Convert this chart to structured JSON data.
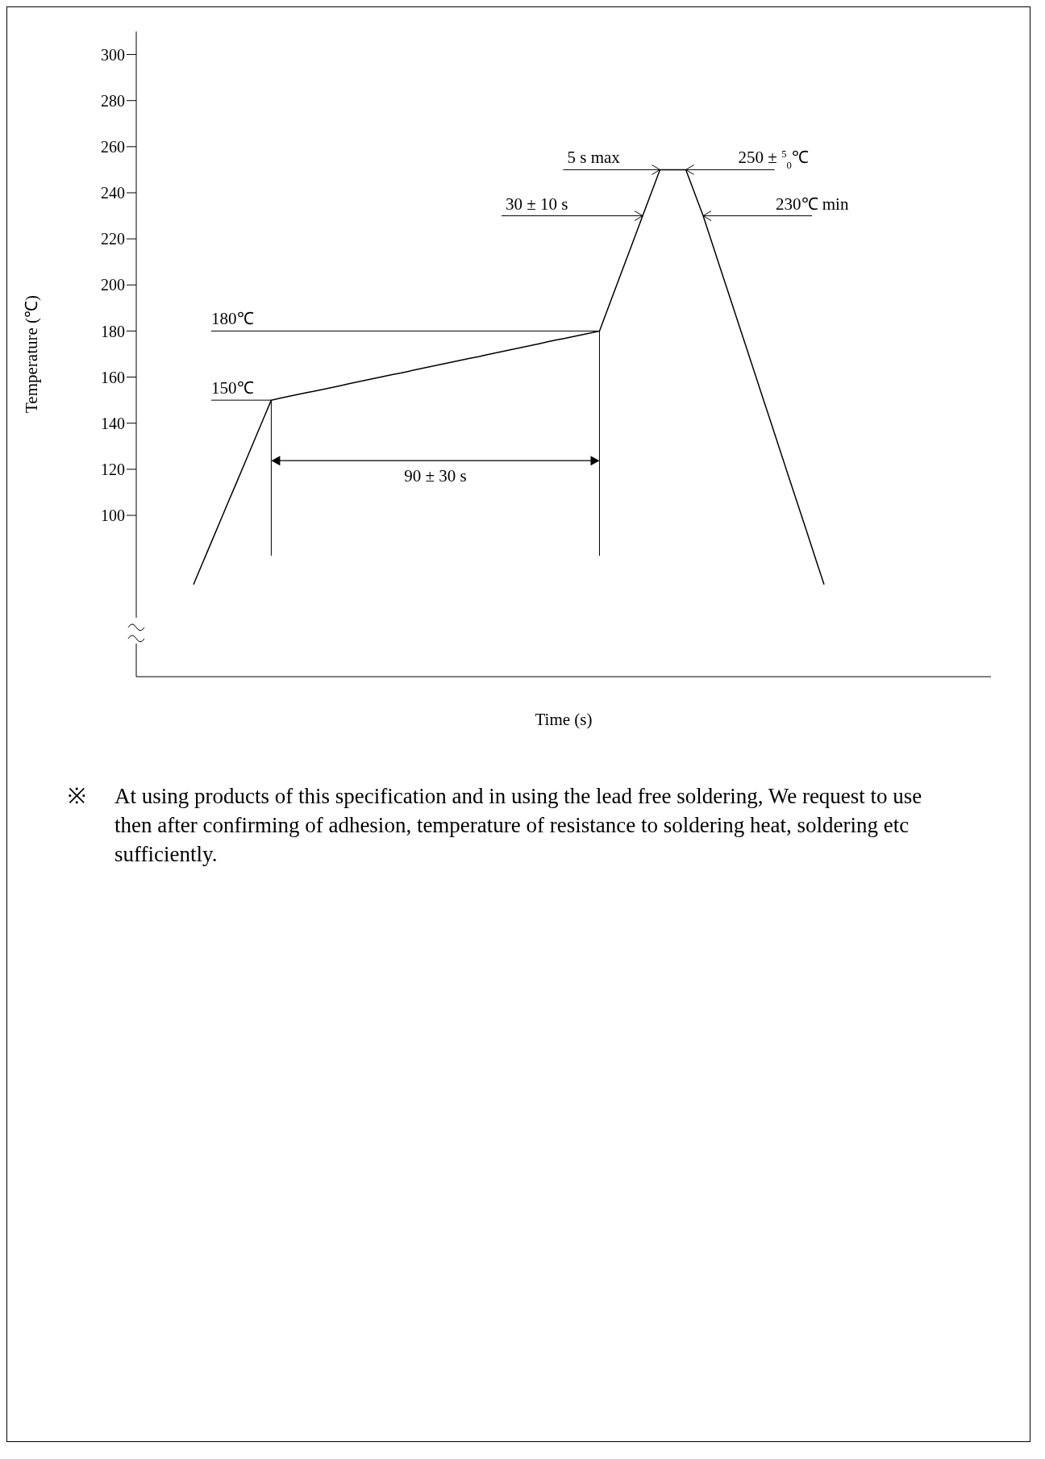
{
  "chart_data": {
    "type": "line",
    "xlabel": "Time (s)",
    "ylabel": "Temperature (℃)",
    "categories": [
      null,
      null,
      null,
      null,
      null,
      null,
      null,
      null,
      null,
      null,
      null,
      null,
      null,
      null,
      null,
      null,
      null,
      null,
      null,
      null,
      null,
      null,
      null,
      null,
      null,
      null,
      null,
      null,
      null,
      null,
      null,
      null,
      null,
      null,
      null,
      null,
      null,
      null,
      null,
      null,
      null,
      null,
      null,
      null,
      null,
      null,
      null,
      null,
      null,
      null,
      null,
      null,
      null,
      null,
      null,
      null,
      null,
      null,
      null,
      null,
      null,
      null,
      null,
      null,
      null,
      null,
      null,
      null,
      null,
      null,
      null,
      null,
      null,
      null
    ],
    "series": [
      {
        "color": "#000000",
        "values": [
          70,
          78.9,
          87.8,
          96.7,
          105.6,
          114.4,
          123.3,
          132.2,
          141.1,
          150,
          150.8,
          151.6,
          152.4,
          153.2,
          153.9,
          154.7,
          155.5,
          156.3,
          157.1,
          157.9,
          158.7,
          159.5,
          160.3,
          161.1,
          161.8,
          162.6,
          163.4,
          164.2,
          165,
          165.8,
          166.6,
          167.4,
          168.2,
          168.9,
          169.7,
          170.5,
          171.3,
          172.1,
          172.9,
          173.7,
          174.5,
          175.3,
          176.1,
          176.8,
          177.6,
          178.4,
          179.2,
          180,
          190,
          200,
          210,
          220,
          230,
          240,
          250,
          250,
          250,
          250,
          240,
          230,
          218.6,
          207.1,
          195.7,
          184.3,
          172.9,
          161.4,
          150,
          138.6,
          127.1,
          115.7,
          104.3,
          92.9,
          81.4,
          70
        ]
      }
    ],
    "ylim": [
      30,
      310
    ],
    "yticks": [
      100,
      120,
      140,
      160,
      180,
      200,
      220,
      240,
      260,
      280,
      300
    ],
    "tick_labels": "y",
    "marker": "none",
    "line_style": "solid",
    "annotations": [
      "5 s max",
      "250 ± $^{5}$$_{0}$℃",
      "30 ± 10 s",
      "230℃ min",
      "180℃",
      "150℃",
      "90 ± 30 s",
      "※ At using products of this specification and in using the lead free soldering, We request to use then after confirming of adhesion, temperature of resistance to soldering heat, soldering etc sufficiently."
    ]
  }
}
